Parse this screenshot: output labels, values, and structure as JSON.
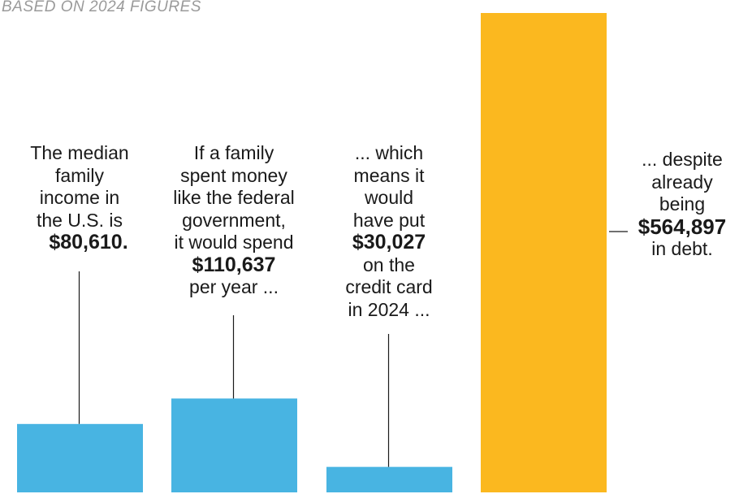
{
  "subtitle": "BASED ON 2024 FIGURES",
  "colors": {
    "primary_bar": "#48b4e2",
    "highlight_bar": "#fbb81f",
    "leader_line": "#1a1a1a"
  },
  "chart_data": {
    "type": "bar",
    "title": "",
    "subtitle": "BASED ON 2024 FIGURES",
    "xlabel": "",
    "ylabel": "",
    "ylim": [
      0,
      564897
    ],
    "grid": false,
    "categories": [
      "Median family income",
      "Family spending like federal government",
      "Put on credit card",
      "Debt"
    ],
    "values": [
      80610,
      110637,
      30027,
      564897
    ],
    "bar_colors": [
      "#48b4e2",
      "#48b4e2",
      "#48b4e2",
      "#fbb81f"
    ],
    "annotations": [
      {
        "lines_before": [
          "The median",
          "family",
          "income in",
          "the U.S. is"
        ],
        "amount": "$80,610.",
        "lines_after": []
      },
      {
        "lines_before": [
          "If a family",
          "spent money",
          "like the federal",
          "government,",
          "it would spend"
        ],
        "amount": "$110,637",
        "lines_after": [
          "per year ..."
        ]
      },
      {
        "lines_before": [
          "... which",
          "means it",
          "would",
          "have put"
        ],
        "amount": "$30,027",
        "lines_after": [
          "on the",
          "credit card",
          "in 2024 ..."
        ]
      },
      {
        "lines_before": [
          "... despite",
          "already",
          "being"
        ],
        "amount": "$564,897",
        "lines_after": [
          "in debt."
        ]
      }
    ]
  }
}
